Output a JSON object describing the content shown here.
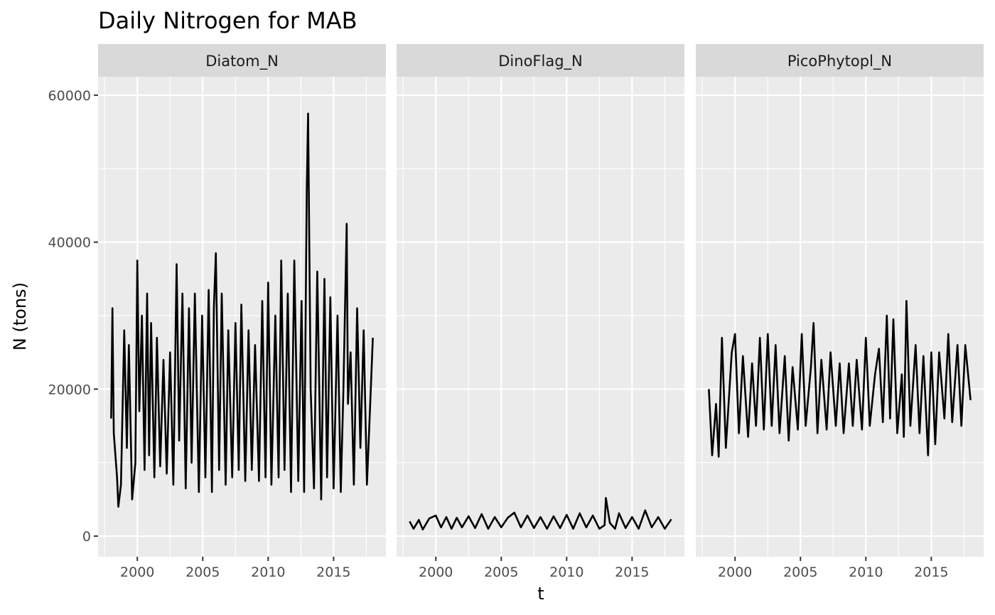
{
  "chart_data": {
    "type": "line",
    "title": "Daily Nitrogen for MAB",
    "xlabel": "t",
    "ylabel": "N (tons)",
    "xlim": [
      1997,
      2019
    ],
    "ylim": [
      -2800,
      62500
    ],
    "x_ticks": [
      2000,
      2005,
      2010,
      2015
    ],
    "y_ticks": [
      0,
      20000,
      40000,
      60000
    ],
    "x_tick_labels": [
      "2000",
      "2005",
      "2010",
      "2015"
    ],
    "y_tick_labels": [
      "0",
      "20000",
      "40000",
      "60000"
    ],
    "grid": true,
    "facets": [
      {
        "name": "Diatom_N",
        "x": [
          1998.0,
          1998.1,
          1998.2,
          1998.45,
          1998.55,
          1998.75,
          1999.0,
          1999.2,
          1999.35,
          1999.6,
          1999.85,
          2000.0,
          2000.15,
          2000.35,
          2000.55,
          2000.75,
          2000.9,
          2001.05,
          2001.3,
          2001.5,
          2001.75,
          2002.0,
          2002.25,
          2002.5,
          2002.75,
          2003.0,
          2003.2,
          2003.45,
          2003.7,
          2003.95,
          2004.15,
          2004.4,
          2004.7,
          2004.95,
          2005.2,
          2005.45,
          2005.7,
          2005.85,
          2006.0,
          2006.25,
          2006.45,
          2006.75,
          2006.95,
          2007.25,
          2007.5,
          2007.75,
          2007.95,
          2008.25,
          2008.5,
          2008.75,
          2009.0,
          2009.3,
          2009.55,
          2009.8,
          2010.0,
          2010.25,
          2010.55,
          2010.8,
          2011.0,
          2011.25,
          2011.5,
          2011.75,
          2012.0,
          2012.3,
          2012.55,
          2012.75,
          2012.95,
          2013.05,
          2013.25,
          2013.5,
          2013.75,
          2014.05,
          2014.3,
          2014.5,
          2014.75,
          2015.0,
          2015.3,
          2015.55,
          2015.75,
          2016.0,
          2016.1,
          2016.3,
          2016.55,
          2016.8,
          2017.05,
          2017.3,
          2017.55,
          2017.8,
          2018.0
        ],
        "values": [
          16000,
          31000,
          14000,
          8000,
          4000,
          7000,
          28000,
          12000,
          26000,
          5000,
          10000,
          37500,
          17000,
          30000,
          9000,
          33000,
          11000,
          29000,
          8000,
          27000,
          9500,
          24000,
          8500,
          25000,
          7000,
          37000,
          13000,
          33000,
          6500,
          31000,
          10000,
          33000,
          6000,
          30000,
          8000,
          33500,
          6000,
          31000,
          38500,
          9000,
          33000,
          7000,
          28000,
          8000,
          29000,
          9000,
          31500,
          7500,
          28000,
          9000,
          26000,
          7500,
          32000,
          8000,
          34500,
          7000,
          30000,
          8000,
          37500,
          9000,
          33000,
          6000,
          37500,
          7500,
          32000,
          6000,
          47000,
          57500,
          20000,
          6500,
          36000,
          5000,
          35000,
          8000,
          32500,
          6500,
          30000,
          6000,
          20000,
          42500,
          18000,
          25000,
          7000,
          31000,
          12000,
          28000,
          7000,
          18000,
          27000
        ]
      },
      {
        "name": "DinoFlag_N",
        "x": [
          1998.0,
          1998.3,
          1998.7,
          1999.0,
          1999.5,
          2000.0,
          2000.4,
          2000.8,
          2001.2,
          2001.6,
          2002.0,
          2002.5,
          2003.0,
          2003.5,
          2004.0,
          2004.5,
          2005.0,
          2005.5,
          2006.0,
          2006.5,
          2007.0,
          2007.5,
          2008.0,
          2008.5,
          2009.0,
          2009.5,
          2010.0,
          2010.5,
          2011.0,
          2011.5,
          2012.0,
          2012.5,
          2012.9,
          2013.0,
          2013.3,
          2013.7,
          2014.0,
          2014.5,
          2015.0,
          2015.5,
          2016.0,
          2016.5,
          2017.0,
          2017.5,
          2018.0
        ],
        "values": [
          2000,
          1000,
          2200,
          900,
          2400,
          2800,
          1200,
          2600,
          1000,
          2500,
          1200,
          2700,
          1100,
          3000,
          1000,
          2600,
          1200,
          2500,
          3200,
          1200,
          2800,
          1100,
          2600,
          1000,
          2700,
          1100,
          2900,
          1000,
          3100,
          1200,
          2800,
          1000,
          1500,
          5200,
          1800,
          1000,
          3100,
          1100,
          2600,
          1000,
          3500,
          1200,
          2600,
          1000,
          2300
        ]
      },
      {
        "name": "PicoPhytopl_N",
        "x": [
          1998.0,
          1998.25,
          1998.55,
          1998.75,
          1999.0,
          1999.3,
          1999.75,
          2000.0,
          2000.3,
          2000.6,
          2001.0,
          2001.3,
          2001.6,
          2001.9,
          2002.2,
          2002.5,
          2002.8,
          2003.1,
          2003.4,
          2003.8,
          2004.1,
          2004.4,
          2004.8,
          2005.1,
          2005.4,
          2005.8,
          2006.0,
          2006.3,
          2006.6,
          2007.0,
          2007.3,
          2007.7,
          2008.0,
          2008.3,
          2008.7,
          2009.0,
          2009.3,
          2009.7,
          2010.0,
          2010.3,
          2010.7,
          2011.0,
          2011.3,
          2011.6,
          2011.85,
          2012.1,
          2012.4,
          2012.75,
          2012.9,
          2013.1,
          2013.4,
          2013.8,
          2014.1,
          2014.4,
          2014.75,
          2015.0,
          2015.3,
          2015.6,
          2016.0,
          2016.3,
          2016.6,
          2017.0,
          2017.3,
          2017.6,
          2018.0
        ],
        "values": [
          20000,
          11000,
          18000,
          10800,
          27000,
          12000,
          25000,
          27500,
          14000,
          24500,
          13500,
          23500,
          15000,
          27000,
          14500,
          27500,
          15000,
          26000,
          14000,
          24500,
          13000,
          23000,
          14500,
          27500,
          15000,
          23000,
          29000,
          14000,
          24000,
          14500,
          25000,
          15000,
          23500,
          14000,
          23500,
          15000,
          24000,
          14500,
          27000,
          15000,
          22000,
          25500,
          15500,
          30000,
          16000,
          29500,
          14000,
          22000,
          13500,
          32000,
          15000,
          26000,
          14000,
          24500,
          11000,
          25000,
          12500,
          25000,
          16000,
          27500,
          15500,
          26000,
          15000,
          26000,
          18500
        ]
      }
    ]
  }
}
